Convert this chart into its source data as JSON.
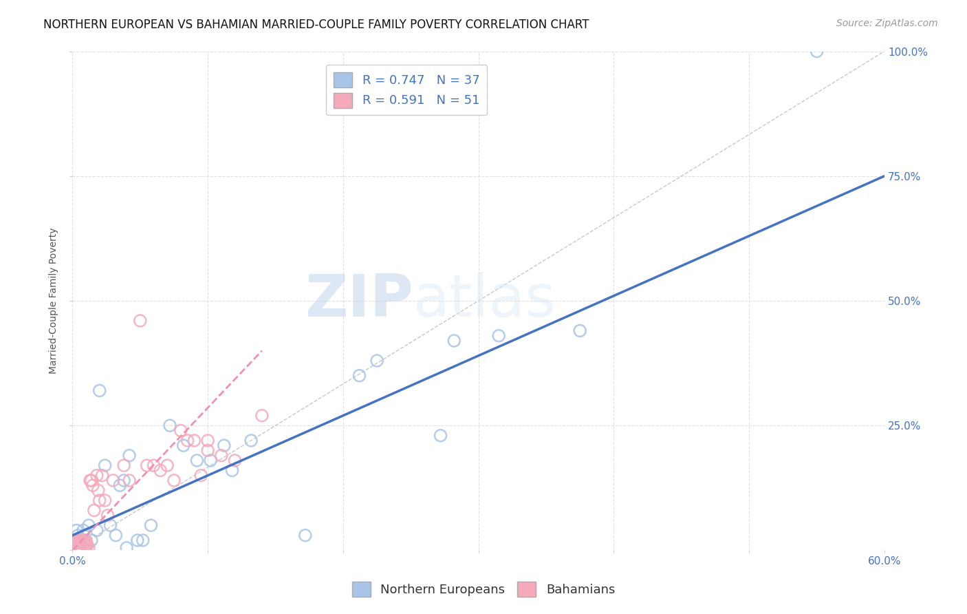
{
  "title": "NORTHERN EUROPEAN VS BAHAMIAN MARRIED-COUPLE FAMILY POVERTY CORRELATION CHART",
  "source": "Source: ZipAtlas.com",
  "ylabel": "Married-Couple Family Poverty",
  "xlim": [
    0,
    0.6
  ],
  "ylim": [
    0,
    1.0
  ],
  "xtick_positions": [
    0.0,
    0.1,
    0.2,
    0.3,
    0.4,
    0.5,
    0.6
  ],
  "xtick_labels": [
    "0.0%",
    "",
    "",
    "",
    "",
    "",
    "60.0%"
  ],
  "ytick_positions": [
    0.0,
    0.25,
    0.5,
    0.75,
    1.0
  ],
  "ytick_labels": [
    "",
    "25.0%",
    "50.0%",
    "75.0%",
    "100.0%"
  ],
  "blue_R": 0.747,
  "blue_N": 37,
  "pink_R": 0.591,
  "pink_N": 51,
  "blue_color": "#A8C4E8",
  "pink_color": "#F4AABB",
  "blue_edge_color": "#7BA7D8",
  "pink_edge_color": "#F080A0",
  "blue_line_color": "#4472C4",
  "pink_line_color": "#F48FB1",
  "ref_line_color": "#C8C8C8",
  "legend_label_blue": "Northern Europeans",
  "legend_label_pink": "Bahamians",
  "watermark_zip": "ZIP",
  "watermark_atlas": "atlas",
  "blue_line_x0": 0.0,
  "blue_line_y0": 0.03,
  "blue_line_x1": 0.6,
  "blue_line_y1": 0.75,
  "pink_line_x0": 0.0,
  "pink_line_y0": 0.0,
  "pink_line_x1": 0.14,
  "pink_line_y1": 0.4,
  "blue_scatter_x": [
    0.02,
    0.04,
    0.003,
    0.004,
    0.004,
    0.005,
    0.006,
    0.008,
    0.009,
    0.01,
    0.012,
    0.014,
    0.018,
    0.024,
    0.028,
    0.032,
    0.035,
    0.038,
    0.042,
    0.048,
    0.052,
    0.058,
    0.072,
    0.082,
    0.092,
    0.102,
    0.112,
    0.118,
    0.132,
    0.172,
    0.212,
    0.225,
    0.272,
    0.282,
    0.315,
    0.375,
    0.55
  ],
  "blue_scatter_y": [
    0.32,
    0.005,
    0.04,
    0.03,
    0.02,
    0.01,
    0.005,
    0.04,
    0.02,
    0.01,
    0.05,
    0.02,
    0.04,
    0.17,
    0.05,
    0.03,
    0.13,
    0.14,
    0.19,
    0.02,
    0.02,
    0.05,
    0.25,
    0.21,
    0.18,
    0.18,
    0.21,
    0.16,
    0.22,
    0.03,
    0.35,
    0.38,
    0.23,
    0.42,
    0.43,
    0.44,
    1.0
  ],
  "pink_scatter_x": [
    0.003,
    0.003,
    0.004,
    0.004,
    0.004,
    0.004,
    0.004,
    0.005,
    0.005,
    0.005,
    0.005,
    0.005,
    0.005,
    0.005,
    0.005,
    0.006,
    0.008,
    0.009,
    0.01,
    0.01,
    0.01,
    0.011,
    0.012,
    0.013,
    0.014,
    0.015,
    0.016,
    0.018,
    0.019,
    0.02,
    0.022,
    0.024,
    0.026,
    0.03,
    0.038,
    0.042,
    0.05,
    0.055,
    0.06,
    0.065,
    0.07,
    0.075,
    0.08,
    0.085,
    0.09,
    0.095,
    0.1,
    0.1,
    0.11,
    0.12,
    0.14
  ],
  "pink_scatter_y": [
    0.02,
    0.015,
    0.02,
    0.015,
    0.01,
    0.008,
    0.005,
    0.02,
    0.015,
    0.01,
    0.008,
    0.005,
    0.004,
    0.003,
    0.003,
    0.02,
    0.02,
    0.015,
    0.02,
    0.015,
    0.012,
    0.01,
    0.005,
    0.14,
    0.14,
    0.13,
    0.08,
    0.15,
    0.12,
    0.1,
    0.15,
    0.1,
    0.07,
    0.14,
    0.17,
    0.14,
    0.46,
    0.17,
    0.17,
    0.16,
    0.17,
    0.14,
    0.24,
    0.22,
    0.22,
    0.15,
    0.22,
    0.2,
    0.19,
    0.18,
    0.27
  ],
  "title_fontsize": 12,
  "axis_label_fontsize": 10,
  "tick_fontsize": 11,
  "legend_fontsize": 13,
  "source_fontsize": 10
}
